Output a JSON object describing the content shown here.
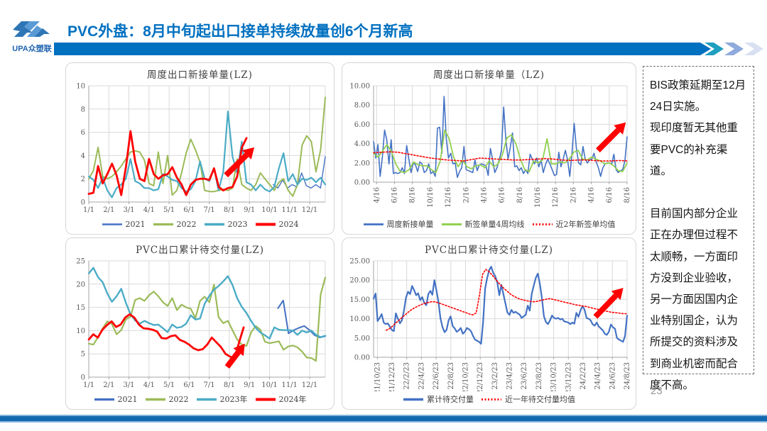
{
  "header": {
    "logo_text": "UPA众塑联",
    "title": "PVC外盘：8月中旬起出口接单持续放量创6个月新高"
  },
  "colors": {
    "title_blue": "#0070C0",
    "header_bar_blue": "#0070C0",
    "chevron_teal": "#1F9FC0",
    "chevron_periwinkle": "#8FAADC",
    "chevron_pale": "#D8E0F2",
    "footer_blue": "#1269B0",
    "series_navy": "#4472C4",
    "series_olive": "#9CBB59",
    "series_teal": "#4BACC6",
    "series_red": "#FF0000",
    "series_bright_green": "#92D050"
  },
  "sidebar": {
    "paragraphs": [
      "BIS政策延期至12月24日实施。",
      "现印度暂无其他重要PVC的补充渠道。",
      "目前国内部分企业正在办理但过程不太顺畅，一方面印方没到企业验收，另一方面因国内企业特别国企，认为所提交的资料涉及到商业机密而配合度不高。"
    ]
  },
  "page_number": "23",
  "chart_data": [
    {
      "type": "line",
      "title": "周度出口新接单量(LZ)",
      "ylim": [
        0,
        10
      ],
      "yticks": [
        0,
        2,
        4,
        6,
        8,
        10
      ],
      "ytick_labels": [
        "0",
        "2",
        "4",
        "6",
        "8",
        "10"
      ],
      "xticks": [
        "1/1",
        "2/1",
        "3/1",
        "4/1",
        "5/1",
        "6/1",
        "7/1",
        "8/1",
        "9/1",
        "10/1",
        "11/1",
        "12/1"
      ],
      "xtick_x0": 0,
      "xtick_x1": 0.934,
      "rotate_x": false,
      "grid": true,
      "legend_position": "bottom",
      "series": [
        {
          "name": "2021",
          "color": "#4472C4",
          "width": 1.4,
          "x0": 0.78,
          "values": [
            1.5,
            1.2,
            1.9,
            1.2,
            1.5,
            1.3,
            2.5,
            1.4,
            1.2,
            1.5,
            1.2,
            3.9
          ]
        },
        {
          "name": "2022",
          "color": "#9CBB59",
          "width": 2,
          "values": [
            2.0,
            2.7,
            4.7,
            2.2,
            2.0,
            2.2,
            2.6,
            3.1,
            3.7,
            4.3,
            4.4,
            4.3,
            3.6,
            1.6,
            1.4,
            4.3,
            1.6,
            4.0,
            0.6,
            1.0,
            2.5,
            4.2,
            5.4,
            4.5,
            3.4,
            1.0,
            0.9,
            0.9,
            1.0,
            1.1,
            1.0,
            1.2,
            3.7,
            1.5,
            1.2,
            1.0,
            1.5,
            2.5,
            2.0,
            1.5,
            1.0,
            1.7,
            2.0,
            1.0,
            0.5,
            1.5,
            4.9,
            5.7,
            5.2,
            2.6,
            4.5,
            9.0
          ]
        },
        {
          "name": "2023",
          "color": "#4BACC6",
          "width": 2.2,
          "values": [
            2.2,
            1.9,
            1.2,
            2.1,
            1.0,
            0.4,
            1.2,
            1.5,
            2.0,
            3.7,
            1.8,
            1.6,
            1.2,
            1.2,
            1.0,
            1.1,
            2.4,
            2.2,
            1.9,
            1.8,
            1.2,
            0.9,
            1.1,
            1.8,
            3.5,
            2.0,
            1.8,
            2.9,
            1.0,
            2.6,
            7.8,
            3.9,
            2.5,
            5.2,
            1.7,
            1.5,
            1.0,
            1.5,
            1.1,
            0.9,
            1.3,
            2.9,
            4.2,
            1.8,
            2.4,
            1.5,
            2.0,
            1.9,
            2.1,
            1.7,
            2.1,
            1.5
          ]
        },
        {
          "name": "2024",
          "color": "#FF0000",
          "width": 2.8,
          "x1": 0.667,
          "values": [
            0.7,
            0.8,
            3.1,
            1.6,
            2.4,
            3.3,
            2.3,
            0.6,
            3.0,
            6.1,
            3.5,
            2.0,
            1.8,
            3.7,
            2.4,
            2.0,
            2.3,
            2.4,
            3.0,
            2.1,
            1.5,
            0.6,
            1.5,
            1.9,
            2.0,
            2.0,
            1.9,
            2.9,
            1.3,
            1.0,
            1.2,
            1.3,
            2.2,
            4.7,
            5.5
          ]
        }
      ],
      "arrow": {
        "x1": 0.58,
        "y1": 2.3,
        "x2": 0.7,
        "y2": 4.7
      }
    },
    {
      "type": "line",
      "title": "周度出口新接单量（LZ)",
      "ylim": [
        0,
        10
      ],
      "yticks": [
        0,
        2,
        4,
        6,
        8,
        10
      ],
      "ytick_labels": [
        "0.00",
        "2.00",
        "4.00",
        "6.00",
        "8.00",
        "10.00"
      ],
      "xticks": [
        "4/16",
        "6/16",
        "8/16",
        "10/16",
        "12/16",
        "2/16",
        "4/16",
        "6/16",
        "8/16",
        "10/16",
        "12/16",
        "2/16",
        "4/16",
        "6/16",
        "8/16"
      ],
      "xtick_x0": 0.012,
      "xtick_x1": 1,
      "rotate_x": true,
      "grid": true,
      "legend_position": "bottom",
      "series": [
        {
          "name": "周度新接单量",
          "color": "#4472C4",
          "width": 1.6,
          "values": [
            4.2,
            2.5,
            3.9,
            0.6,
            2.6,
            5.4,
            4.4,
            1.9,
            4.4,
            0.9,
            1.0,
            0.9,
            1.0,
            1.5,
            0.9,
            3.8,
            2.4,
            1.0,
            2.0,
            1.8,
            1.1,
            2.1,
            1.9,
            1.0,
            1.2,
            1.9,
            0.9,
            1.1,
            0.6,
            5.6,
            5.7,
            3.0,
            8.9,
            4.5,
            2.5,
            3.0,
            1.9,
            2.0,
            0.5,
            1.1,
            1.5,
            3.7,
            1.3,
            1.2,
            1.1,
            1.0,
            2.3,
            1.2,
            1.8,
            1.9,
            1.8,
            1.7,
            0.7,
            3.5,
            2.4,
            1.0,
            1.5,
            2.3,
            3.3,
            7.8,
            4.4,
            2.4,
            3.6,
            5.1,
            1.6,
            1.7,
            1.2,
            1.5,
            0.9,
            1.3,
            0.9,
            2.9,
            2.4,
            1.9,
            2.5,
            1.6,
            2.3,
            1.0,
            1.8,
            2.4,
            1.9,
            1.3,
            0.7,
            0.8,
            3.1,
            1.6,
            2.4,
            3.3,
            2.3,
            0.6,
            3.0,
            6.1,
            3.5,
            2.0,
            1.8,
            3.7,
            2.4,
            2.0,
            2.3,
            2.4,
            3.0,
            2.1,
            1.5,
            0.6,
            1.5,
            1.9,
            2.0,
            2.0,
            1.9,
            2.9,
            1.3,
            1.0,
            1.2,
            1.3,
            2.2,
            4.7
          ]
        },
        {
          "name": "新签单量4周均线",
          "color": "#92D050",
          "width": 1.8,
          "values": [
            3.0,
            2.6,
            3.2,
            3.9,
            3.2,
            1.9,
            1.1,
            1.0,
            1.3,
            2.1,
            1.8,
            1.7,
            1.7,
            1.3,
            1.0,
            2.2,
            5.4,
            4.5,
            2.6,
            1.6,
            2.3,
            1.6,
            1.4,
            1.7,
            1.8,
            1.5,
            2.2,
            1.6,
            1.9,
            2.9,
            4.6,
            4.9,
            4.0,
            2.4,
            1.3,
            1.1,
            2.2,
            2.0,
            2.3,
            4.5,
            1.9,
            1.9,
            2.1,
            2.0,
            2.4,
            3.1,
            3.3,
            2.4,
            2.3,
            2.6,
            2.4,
            2.2,
            1.9,
            2.0,
            1.7,
            1.2,
            1.1,
            2.0
          ]
        },
        {
          "name": "近2年新签单均值",
          "color": "#FF0000",
          "width": 1.6,
          "dash": "2,2.4",
          "values": [
            3.05,
            3.1,
            3.15,
            3.1,
            2.95,
            2.8,
            2.65,
            2.5,
            2.4,
            2.3,
            2.25,
            2.2,
            2.35,
            2.5,
            2.45,
            2.4,
            2.35,
            2.3,
            2.3,
            2.35,
            2.4,
            2.45,
            2.4,
            2.3,
            2.25,
            2.3,
            2.3,
            2.25,
            2.2,
            2.2,
            2.25,
            2.2
          ]
        }
      ],
      "arrow": {
        "x1": 0.885,
        "y1": 3.3,
        "x2": 0.995,
        "y2": 6.2
      }
    },
    {
      "type": "line",
      "title": "PVC出口累计待交付量(LZ)",
      "ylim": [
        0,
        25
      ],
      "yticks": [
        0,
        5,
        10,
        15,
        20,
        25
      ],
      "ytick_labels": [
        "0",
        "5",
        "10",
        "15",
        "20",
        "25"
      ],
      "xticks": [
        "1/1",
        "2/1",
        "3/1",
        "4/1",
        "5/1",
        "6/1",
        "7/1",
        "8/1",
        "9/1",
        "10/1",
        "11/1",
        "12/1"
      ],
      "xtick_x0": 0,
      "xtick_x1": 0.934,
      "rotate_x": false,
      "grid": true,
      "legend_position": "bottom",
      "series": [
        {
          "name": "2021",
          "color": "#4472C4",
          "width": 2,
          "x0": 0.8,
          "values": [
            14.8,
            16.5,
            9.4,
            10.1,
            10.6,
            11.0,
            10.1,
            9.0,
            8.5,
            8.8
          ]
        },
        {
          "name": "2022",
          "color": "#9CBB59",
          "width": 2.2,
          "values": [
            7.2,
            7.0,
            8.6,
            10.5,
            12.0,
            11.4,
            9.2,
            10.1,
            12.4,
            13.0,
            16.6,
            17.0,
            16.4,
            17.6,
            18.4,
            17.4,
            16.1,
            15.3,
            17.0,
            14.4,
            15.6,
            15.0,
            14.7,
            12.7,
            16.4,
            17.3,
            16.1,
            19.9,
            12.9,
            11.6,
            12.1,
            10.1,
            8.1,
            7.0,
            6.7,
            9.6,
            11.0,
            10.2,
            7.6,
            7.3,
            7.5,
            7.7,
            5.9,
            6.6,
            6.8,
            6.4,
            5.5,
            4.2,
            4.1,
            3.5,
            17.8,
            21.4
          ]
        },
        {
          "name": "2023年",
          "color": "#4BACC6",
          "width": 2.4,
          "values": [
            22.3,
            23.5,
            21.5,
            20.4,
            18.0,
            16.2,
            17.4,
            19.0,
            16.0,
            13.5,
            12.2,
            11.5,
            12.1,
            11.6,
            11.2,
            11.3,
            10.5,
            9.7,
            11.3,
            10.6,
            10.8,
            11.5,
            13.3,
            12.4,
            12.6,
            15.8,
            17.5,
            18.8,
            19.6,
            20.6,
            21.7,
            19.8,
            17.0,
            15.1,
            13.8,
            12.1,
            10.6,
            9.6,
            9.0,
            8.3,
            10.7,
            10.2,
            10.1,
            10.1,
            10.0,
            9.1,
            10.0,
            9.6,
            10.0,
            9.1,
            8.6,
            8.9
          ]
        },
        {
          "name": "2024年",
          "color": "#FF0000",
          "width": 2.8,
          "x1": 0.655,
          "values": [
            8.1,
            9.2,
            8.5,
            10.2,
            11.2,
            12.0,
            10.8,
            11.3,
            12.8,
            13.5,
            12.8,
            11.3,
            10.5,
            10.4,
            10.2,
            9.8,
            8.4,
            8.3,
            8.8,
            9.0,
            8.0,
            7.6,
            7.0,
            6.2,
            5.8,
            6.0,
            7.0,
            8.5,
            7.5,
            6.5,
            5.0,
            4.4,
            4.1,
            7.5,
            10.7
          ]
        }
      ],
      "arrow": {
        "x1": 0.585,
        "y1": 2.2,
        "x2": 0.66,
        "y2": 7.2
      }
    },
    {
      "type": "line",
      "title": "PVC出口累计待交付量(LZ)",
      "ylim": [
        0,
        25
      ],
      "yticks": [
        0,
        5,
        10,
        15,
        20,
        25
      ],
      "ytick_labels": [
        "0.00",
        "5.00",
        "10.00",
        "15.00",
        "20.00",
        "25.00"
      ],
      "xticks": [
        "21/10/23",
        "21/12/23",
        "22/2/23",
        "22/4/23",
        "22/6/23",
        "22/8/23",
        "22/10/23",
        "22/12/23",
        "23/2/23",
        "23/4/23",
        "23/6/23",
        "23/8/23",
        "23/10/23",
        "23/12/23",
        "24/2/23",
        "24/4/23",
        "24/6/23",
        "24/8/23"
      ],
      "xtick_x0": 0.015,
      "xtick_x1": 1,
      "rotate_x": true,
      "grid": true,
      "legend_position": "bottom",
      "series": [
        {
          "name": "累计待交付量",
          "color": "#4472C4",
          "width": 2.2,
          "values": [
            15.2,
            16.5,
            9.4,
            10.2,
            11.2,
            9.0,
            8.6,
            8.8,
            8.0,
            7.1,
            6.8,
            11.4,
            10.0,
            8.8,
            9.6,
            12.1,
            15.5,
            17.0,
            16.4,
            18.5,
            17.4,
            16.1,
            16.6,
            14.8,
            15.6,
            14.1,
            13.5,
            16.4,
            17.2,
            16.2,
            20.0,
            17.4,
            14.4,
            10.1,
            7.8,
            6.5,
            7.1,
            9.6,
            10.6,
            8.1,
            7.5,
            6.6,
            7.0,
            7.6,
            6.1,
            6.6,
            7.6,
            7.3,
            6.8,
            5.6,
            4.6,
            4.3,
            4.0,
            3.5,
            9.0,
            17.8,
            20.5,
            22.6,
            23.5,
            21.9,
            21.0,
            19.4,
            16.1,
            18.8,
            16.4,
            14.0,
            11.6,
            11.0,
            12.3,
            11.5,
            11.8,
            11.4,
            11.1,
            10.2,
            10.6,
            11.0,
            13.4,
            12.1,
            16.5,
            18.6,
            20.6,
            21.7,
            19.0,
            15.4,
            10.6,
            9.1,
            8.6,
            9.6,
            10.8,
            10.2,
            10.0,
            10.2,
            9.8,
            10.0,
            9.3,
            9.2,
            9.0,
            8.6,
            9.0,
            8.7,
            11.5,
            10.5,
            12.1,
            13.3,
            12.4,
            10.2,
            10.0,
            9.6,
            8.6,
            8.2,
            9.0,
            8.0,
            7.5,
            7.0,
            6.1,
            5.8,
            6.6,
            8.5,
            7.8,
            7.4,
            5.0,
            4.6,
            4.3,
            4.0,
            5.5,
            10.8
          ]
        },
        {
          "name": "近一年待交付量均值",
          "color": "#FF0000",
          "width": 1.6,
          "dash": "2,2.4",
          "x0": 0.05,
          "values": [
            7.0,
            7.4,
            8.1,
            8.9,
            9.6,
            10.4,
            11.1,
            11.8,
            12.4,
            12.9,
            13.3,
            13.7,
            14.0,
            14.2,
            14.4,
            14.4,
            14.2,
            13.9,
            13.6,
            13.3,
            13.0,
            12.7,
            12.4,
            12.1,
            11.8,
            11.5,
            11.2,
            11.0,
            11.5,
            16.0,
            21.5,
            22.8,
            22.2,
            21.3,
            20.3,
            19.3,
            18.4,
            17.6,
            16.9,
            16.2,
            15.7,
            15.3,
            15.0,
            14.8,
            14.6,
            14.5,
            14.4,
            14.5,
            14.7,
            14.9,
            15.1,
            15.2,
            15.0,
            14.8,
            14.6,
            14.4,
            14.2,
            14.0,
            13.8,
            13.6,
            13.5,
            13.3,
            13.2,
            13.0,
            12.8,
            12.6,
            12.4,
            12.2,
            12.0,
            11.9,
            11.7,
            11.6,
            11.5,
            11.4,
            11.3,
            11.3
          ]
        }
      ],
      "arrow": {
        "x1": 0.875,
        "y1": 10.5,
        "x2": 0.985,
        "y2": 18.0
      }
    }
  ]
}
